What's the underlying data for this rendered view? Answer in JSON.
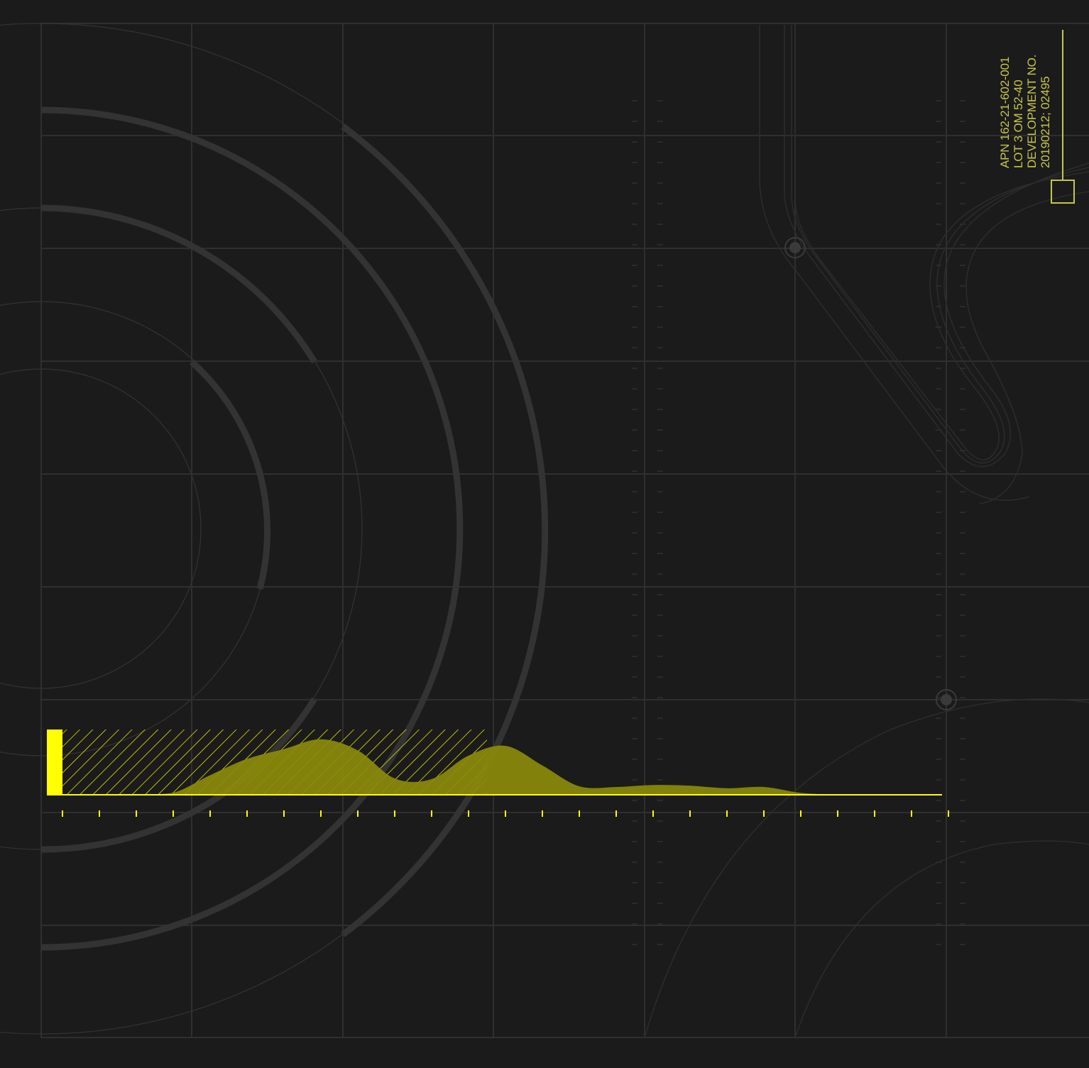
{
  "colors": {
    "background": "#1b1b1b",
    "grid": "#2f2f2f",
    "thin_line": "#333333",
    "ring": "#333333",
    "accent": "#ffff00",
    "accent_text": "#c7c64c",
    "area_fill": "#8a8a0a"
  },
  "metadata": {
    "line1": "APN 162-21-602-001",
    "line2": "LOT 3 OM 52-40",
    "line3": "DEVELOPMENT NO.",
    "line4": "20190212; 02495"
  },
  "icons": {
    "corner_box": "square-outline-icon",
    "node_upper": "grid-node-icon",
    "node_lower": "grid-node-icon",
    "marker": "accent-bar-marker-icon"
  },
  "chart_data": {
    "type": "area",
    "title": "",
    "xlabel": "",
    "ylabel": "",
    "x": [
      0,
      1,
      2,
      3,
      4,
      5,
      6,
      7,
      8,
      9,
      10,
      11,
      12,
      13,
      14,
      15,
      16,
      17,
      18,
      19,
      20,
      21,
      22,
      23,
      24
    ],
    "values": [
      0,
      0,
      0,
      0.03,
      0.3,
      0.55,
      0.7,
      0.85,
      0.68,
      0.25,
      0.24,
      0.6,
      0.75,
      0.45,
      0.13,
      0.12,
      0.15,
      0.14,
      0.1,
      0.12,
      0.03,
      0,
      0,
      0,
      0
    ],
    "highlight_range": [
      0,
      11.5
    ],
    "highlight_level": 1.0,
    "ylim": [
      0,
      1
    ],
    "ticks": 25,
    "grid": true
  }
}
